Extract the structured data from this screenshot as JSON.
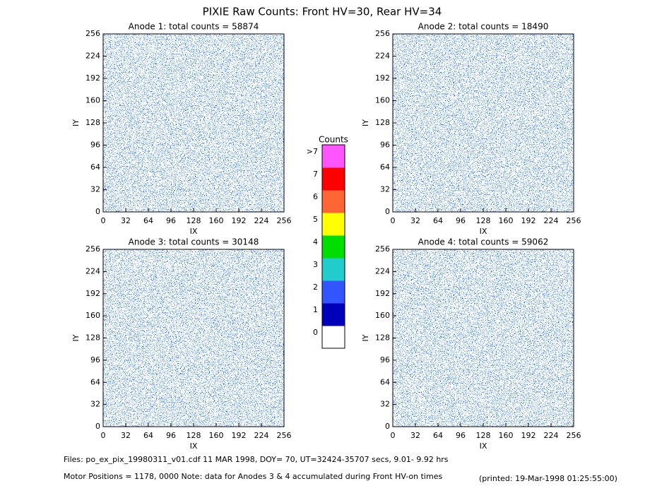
{
  "title": "PIXIE Raw Counts:  Front HV=30, Rear HV=34",
  "chart_data": [
    {
      "type": "heatmap",
      "title": "Anode 1: total counts = 58874",
      "xlabel": "IX",
      "ylabel": "IY",
      "xlim": [
        0,
        256
      ],
      "xticks": [
        0,
        32,
        64,
        96,
        128,
        160,
        192,
        224,
        256
      ],
      "ylim": [
        0,
        256
      ],
      "yticks": [
        0,
        32,
        64,
        96,
        128,
        160,
        192,
        224,
        256
      ]
    },
    {
      "type": "heatmap",
      "title": "Anode 2: total counts = 18490",
      "xlabel": "IX",
      "ylabel": "IY",
      "xlim": [
        0,
        256
      ],
      "xticks": [
        0,
        32,
        64,
        96,
        128,
        160,
        192,
        224,
        256
      ],
      "ylim": [
        0,
        256
      ],
      "yticks": [
        0,
        32,
        64,
        96,
        128,
        160,
        192,
        224,
        256
      ]
    },
    {
      "type": "heatmap",
      "title": "Anode 3: total counts = 30148",
      "xlabel": "IX",
      "ylabel": "IY",
      "xlim": [
        0,
        256
      ],
      "xticks": [
        0,
        32,
        64,
        96,
        128,
        160,
        192,
        224,
        256
      ],
      "ylim": [
        0,
        256
      ],
      "yticks": [
        0,
        32,
        64,
        96,
        128,
        160,
        192,
        224,
        256
      ]
    },
    {
      "type": "heatmap",
      "title": "Anode 4: total counts = 59062",
      "xlabel": "IX",
      "ylabel": "IY",
      "xlim": [
        0,
        256
      ],
      "xticks": [
        0,
        32,
        64,
        96,
        128,
        160,
        192,
        224,
        256
      ],
      "ylim": [
        0,
        256
      ],
      "yticks": [
        0,
        32,
        64,
        96,
        128,
        160,
        192,
        224,
        256
      ]
    }
  ],
  "colorbar": {
    "title": "Counts",
    "labels": [
      "0",
      "1",
      "2",
      "3",
      "4",
      "5",
      "6",
      "7",
      ">7"
    ],
    "colors": [
      "#ffffff",
      "#0000bb",
      "#3355ff",
      "#22cccc",
      "#00dd00",
      "#ffff00",
      "#ff6633",
      "#ff0000",
      "#ff55ff"
    ]
  },
  "footer": {
    "files": "Files: po_ex_pix_19980311_v01.cdf    11 MAR 1998, DOY= 70, UT=32424-35707 secs,  9.01- 9.92 hrs",
    "motor": "Motor Positions = 1178, 0000   Note: data for Anodes 3 & 4 accumulated during Front HV-on times",
    "printed": "(printed: 19-Mar-1998 01:25:55:00)"
  }
}
